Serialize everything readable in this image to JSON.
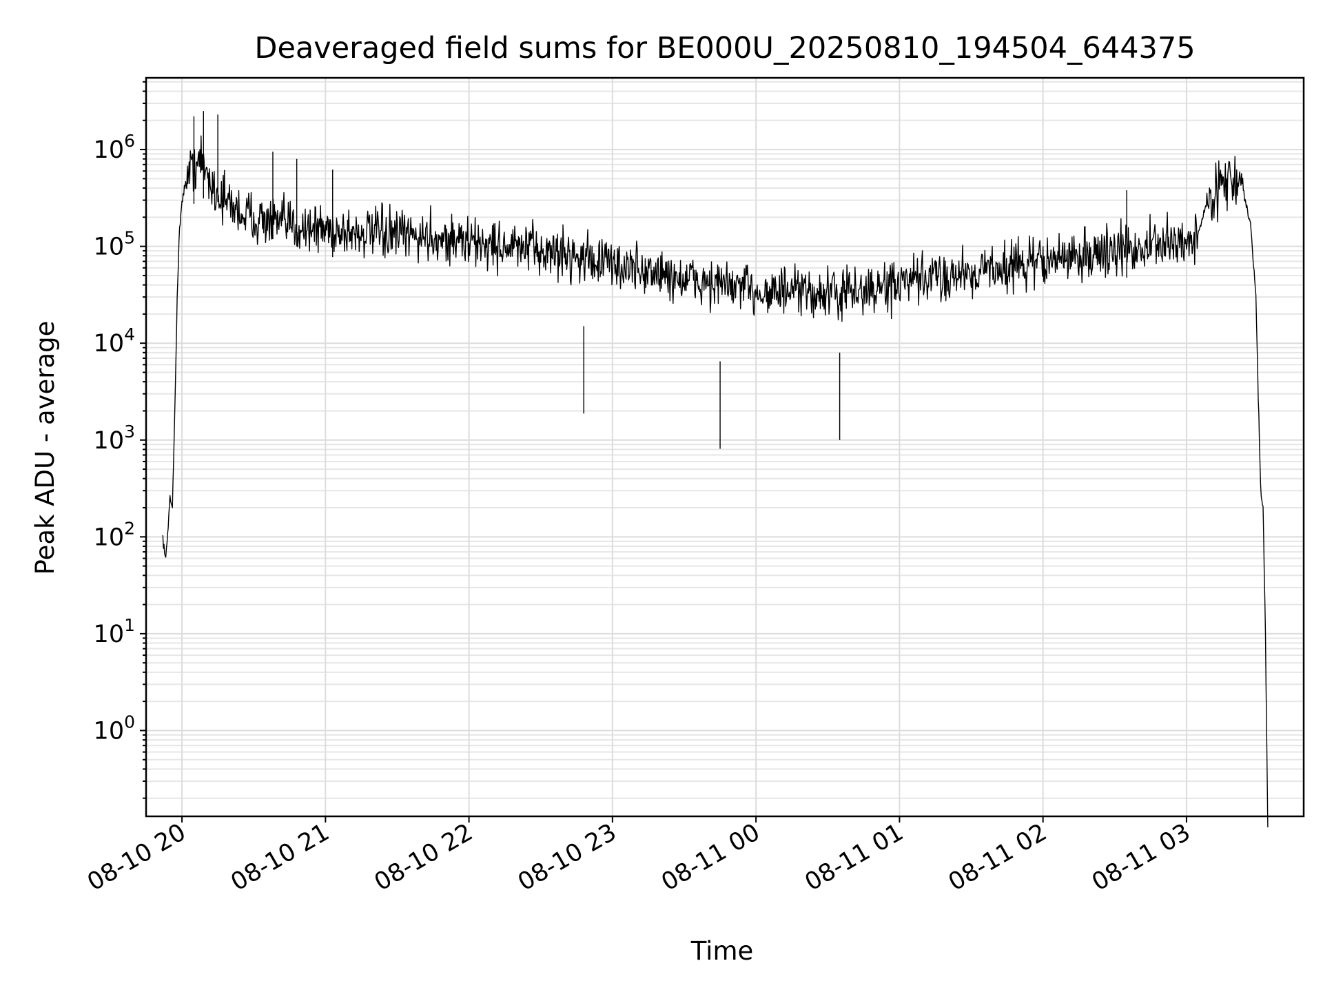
{
  "chart_data": {
    "type": "line",
    "title": "Deaveraged field sums for BE000U_20250810_194504_644375",
    "xlabel": "Time",
    "ylabel": "Peak ADU - average",
    "x_scale": "time",
    "y_scale": "log",
    "xlim": [
      "2025-08-10 19:45",
      "2025-08-11 03:49"
    ],
    "ylim": [
      0.13,
      5500000
    ],
    "grid": true,
    "legend": "none",
    "line_color": "#000000",
    "x_ticks": [
      {
        "value": "2025-08-10 20:00",
        "label": "08-10 20"
      },
      {
        "value": "2025-08-10 21:00",
        "label": "08-10 21"
      },
      {
        "value": "2025-08-10 22:00",
        "label": "08-10 22"
      },
      {
        "value": "2025-08-10 23:00",
        "label": "08-10 23"
      },
      {
        "value": "2025-08-11 00:00",
        "label": "08-11 00"
      },
      {
        "value": "2025-08-11 01:00",
        "label": "08-11 01"
      },
      {
        "value": "2025-08-11 02:00",
        "label": "08-11 02"
      },
      {
        "value": "2025-08-11 03:00",
        "label": "08-11 03"
      }
    ],
    "y_ticks": [
      {
        "value": 1,
        "base": "10",
        "exp": "0"
      },
      {
        "value": 10,
        "base": "10",
        "exp": "1"
      },
      {
        "value": 100,
        "base": "10",
        "exp": "2"
      },
      {
        "value": 1000,
        "base": "10",
        "exp": "3"
      },
      {
        "value": 10000,
        "base": "10",
        "exp": "4"
      },
      {
        "value": 100000,
        "base": "10",
        "exp": "5"
      },
      {
        "value": 1000000,
        "base": "10",
        "exp": "6"
      }
    ],
    "series": [
      {
        "x": [
          "2025-08-10 19:52",
          "2025-08-10 19:53",
          "2025-08-10 19:54",
          "2025-08-10 19:55",
          "2025-08-10 19:56",
          "2025-08-10 19:57",
          "2025-08-10 19:58",
          "2025-08-10 19:59",
          "2025-08-10 20:00",
          "2025-08-10 20:02",
          "2025-08-10 20:05",
          "2025-08-10 20:08",
          "2025-08-10 20:10",
          "2025-08-10 20:12",
          "2025-08-10 20:15",
          "2025-08-10 20:18",
          "2025-08-10 20:22",
          "2025-08-10 20:25",
          "2025-08-10 20:30",
          "2025-08-10 20:36",
          "2025-08-10 20:40",
          "2025-08-10 20:45",
          "2025-08-10 20:50",
          "2025-08-10 21:00",
          "2025-08-10 21:10",
          "2025-08-10 21:20",
          "2025-08-10 21:30",
          "2025-08-10 21:45",
          "2025-08-10 22:00",
          "2025-08-10 22:15",
          "2025-08-10 22:30",
          "2025-08-10 22:45",
          "2025-08-10 23:00",
          "2025-08-10 23:15",
          "2025-08-10 23:30",
          "2025-08-10 23:45",
          "2025-08-11 00:00",
          "2025-08-11 00:15",
          "2025-08-11 00:30",
          "2025-08-11 00:45",
          "2025-08-11 01:00",
          "2025-08-11 01:15",
          "2025-08-11 01:30",
          "2025-08-11 01:45",
          "2025-08-11 02:00",
          "2025-08-11 02:15",
          "2025-08-11 02:30",
          "2025-08-11 02:45",
          "2025-08-11 03:00",
          "2025-08-11 03:05",
          "2025-08-11 03:08",
          "2025-08-11 03:12",
          "2025-08-11 03:15",
          "2025-08-11 03:18",
          "2025-08-11 03:21",
          "2025-08-11 03:24",
          "2025-08-11 03:27",
          "2025-08-11 03:29",
          "2025-08-11 03:30",
          "2025-08-11 03:31",
          "2025-08-11 03:32",
          "2025-08-11 03:33",
          "2025-08-11 03:34"
        ],
        "y": [
          100,
          60,
          100,
          250,
          200,
          2000,
          30000,
          150000,
          300000,
          500000,
          700000,
          750000,
          600000,
          450000,
          350000,
          300000,
          250000,
          220000,
          200000,
          180000,
          170000,
          165000,
          160000,
          150000,
          140000,
          135000,
          130000,
          125000,
          110000,
          100000,
          90000,
          80000,
          65000,
          55000,
          45000,
          40000,
          35000,
          33000,
          32000,
          34000,
          40000,
          48000,
          55000,
          62000,
          70000,
          80000,
          90000,
          100000,
          110000,
          140000,
          250000,
          380000,
          480000,
          500000,
          460000,
          350000,
          150000,
          30000,
          3000,
          300,
          200,
          10,
          0.1
        ],
        "spikes": [
          {
            "x": "2025-08-10 20:05",
            "y": 2200000
          },
          {
            "x": "2025-08-10 20:09",
            "y": 2500000
          },
          {
            "x": "2025-08-10 20:15",
            "y": 2300000
          },
          {
            "x": "2025-08-10 20:38",
            "y": 950000
          },
          {
            "x": "2025-08-10 20:48",
            "y": 800000
          },
          {
            "x": "2025-08-10 21:03",
            "y": 620000
          },
          {
            "x": "2025-08-10 22:48",
            "y": 15000
          },
          {
            "x": "2025-08-10 23:45",
            "y": 6500
          },
          {
            "x": "2025-08-11 00:35",
            "y": 8000
          },
          {
            "x": "2025-08-11 02:35",
            "y": 380000
          }
        ]
      }
    ]
  }
}
